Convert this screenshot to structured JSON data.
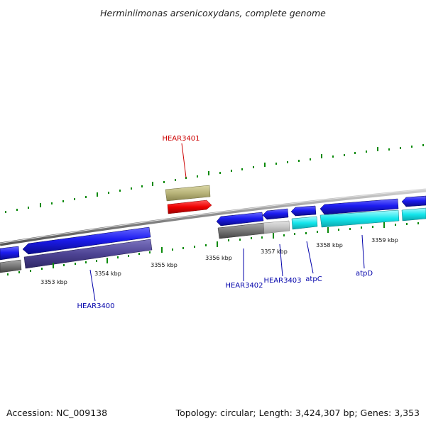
{
  "title": "Herminiimonas arsenicoxydans, complete genome",
  "footer": {
    "accession": "Accession: NC_009138",
    "summary": "Topology: circular; Length: 3,424,307 bp; Genes: 3,353"
  },
  "kbp_labels": [
    "3353 kbp",
    "3354 kbp",
    "3355 kbp",
    "3356 kbp",
    "3357 kbp",
    "3358 kbp",
    "3359 kbp"
  ],
  "gene_labels": {
    "HEAR3400": "HEAR3400",
    "HEAR3401": "HEAR3401",
    "HEAR3402": "HEAR3402",
    "HEAR3403": "HEAR3403",
    "atpC": "atpC",
    "atpD": "atpD"
  },
  "colors": {
    "backbone": "#8a8a8a",
    "gene_blue": "#1f1fe0",
    "highlight_red": "#ee0000",
    "tick_green": "#0a8a0a",
    "cds_olive": "#b8b47a",
    "cds_gray": "#777777",
    "cds_lightgray": "#c4c4c4",
    "cds_cyan": "#14e6ec",
    "cds_purple": "#4e4494",
    "label_blue": "#0000aa",
    "label_red": "#cc0000"
  }
}
